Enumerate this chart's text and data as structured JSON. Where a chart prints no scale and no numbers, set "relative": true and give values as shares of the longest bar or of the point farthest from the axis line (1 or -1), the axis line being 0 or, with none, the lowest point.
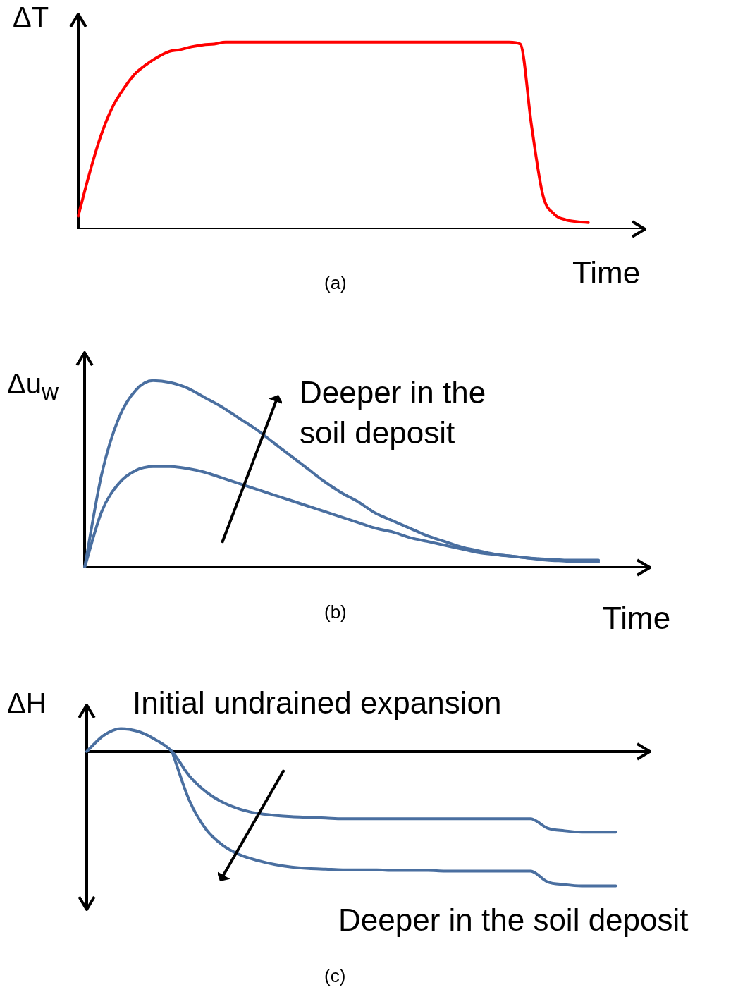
{
  "chart_data": [
    {
      "type": "line",
      "relative": true,
      "ylabel": "ΔT",
      "xlabel": "Time",
      "annotations": [
        "(a)"
      ],
      "categories": [
        null,
        null,
        null,
        null,
        null,
        null,
        null,
        null,
        null,
        null,
        null,
        null,
        null,
        null,
        null,
        null,
        null,
        null,
        null,
        null,
        null,
        null,
        null,
        null,
        null,
        null,
        null,
        null,
        null,
        null,
        null,
        null,
        null,
        null,
        null,
        null,
        null,
        null,
        null,
        null,
        null,
        null,
        null,
        null,
        null,
        null,
        null,
        null,
        null,
        null,
        null
      ],
      "series": [
        {
          "color": "#ff0000",
          "values": [
            0.07,
            0.3,
            0.5,
            0.65,
            0.75,
            0.83,
            0.88,
            0.92,
            0.95,
            0.96,
            0.975,
            0.985,
            0.99,
            1,
            1,
            1,
            1,
            1,
            1,
            1,
            1,
            1,
            1,
            1,
            1,
            1,
            1,
            1,
            1,
            1,
            1,
            1,
            1,
            1,
            1,
            1,
            1,
            1,
            1,
            0.99,
            0.55,
            0.18,
            0.08,
            0.05,
            0.04,
            0.035,
            null,
            null,
            null,
            null,
            null
          ]
        }
      ]
    },
    {
      "type": "line",
      "relative": true,
      "ylabel": "Δu$_{w}$",
      "xlabel": "Time",
      "annotations": [
        "(b)",
        "Deeper in the soil deposit"
      ],
      "categories": [
        null,
        null,
        null,
        null,
        null,
        null,
        null,
        null,
        null,
        null,
        null,
        null,
        null,
        null,
        null,
        null,
        null,
        null,
        null,
        null,
        null,
        null,
        null,
        null,
        null,
        null,
        null,
        null,
        null,
        null,
        null,
        null,
        null,
        null
      ],
      "series": [
        {
          "color": "#4a6fa0",
          "values": [
            0,
            0.5,
            0.8,
            0.95,
            1,
            0.99,
            0.96,
            0.91,
            0.86,
            0.8,
            0.74,
            0.67,
            0.6,
            0.53,
            0.46,
            0.4,
            0.35,
            0.29,
            0.25,
            0.21,
            0.17,
            0.14,
            0.11,
            0.09,
            0.07,
            0.06,
            0.05,
            0.045,
            0.04,
            0.04,
            0.04,
            null,
            null,
            null
          ]
        },
        {
          "color": "#4a6fa0",
          "values": [
            0,
            0.3,
            0.45,
            0.52,
            0.54,
            0.54,
            0.53,
            0.51,
            0.48,
            0.45,
            0.42,
            0.39,
            0.36,
            0.33,
            0.3,
            0.27,
            0.24,
            0.21,
            0.19,
            0.16,
            0.14,
            0.12,
            0.1,
            0.08,
            0.07,
            0.06,
            0.05,
            0.04,
            0.035,
            0.03,
            0.03,
            null,
            null,
            null
          ]
        }
      ]
    },
    {
      "type": "line",
      "relative": true,
      "ylabel": "ΔH",
      "annotations": [
        "(c)",
        "Initial undrained expansion",
        "Deeper in the soil deposit"
      ],
      "categories": [
        null,
        null,
        null,
        null,
        null,
        null,
        null,
        null,
        null,
        null,
        null,
        null,
        null,
        null,
        null,
        null,
        null,
        null,
        null,
        null,
        null,
        null,
        null,
        null,
        null,
        null,
        null,
        null,
        null,
        null,
        null,
        null,
        null,
        null
      ],
      "series": [
        {
          "color": "#4a6fa0",
          "values": [
            0,
            0.12,
            0.17,
            0.15,
            0.09,
            0,
            -0.18,
            -0.3,
            -0.38,
            -0.43,
            -0.46,
            -0.475,
            -0.485,
            -0.49,
            -0.495,
            -0.5,
            -0.5,
            -0.5,
            -0.5,
            -0.5,
            -0.5,
            -0.5,
            -0.5,
            -0.5,
            -0.5,
            -0.5,
            -0.5,
            -0.57,
            -0.59,
            -0.6,
            -0.6,
            -0.6,
            null,
            null
          ]
        },
        {
          "color": "#4a6fa0",
          "values": [
            null,
            null,
            null,
            null,
            null,
            0,
            -0.36,
            -0.58,
            -0.7,
            -0.77,
            -0.81,
            -0.84,
            -0.86,
            -0.87,
            -0.875,
            -0.88,
            -0.88,
            -0.88,
            -0.885,
            -0.885,
            -0.885,
            -0.89,
            -0.89,
            -0.89,
            -0.89,
            -0.89,
            -0.89,
            -0.97,
            -0.99,
            -1,
            -1,
            -1,
            null,
            null
          ]
        }
      ]
    }
  ]
}
